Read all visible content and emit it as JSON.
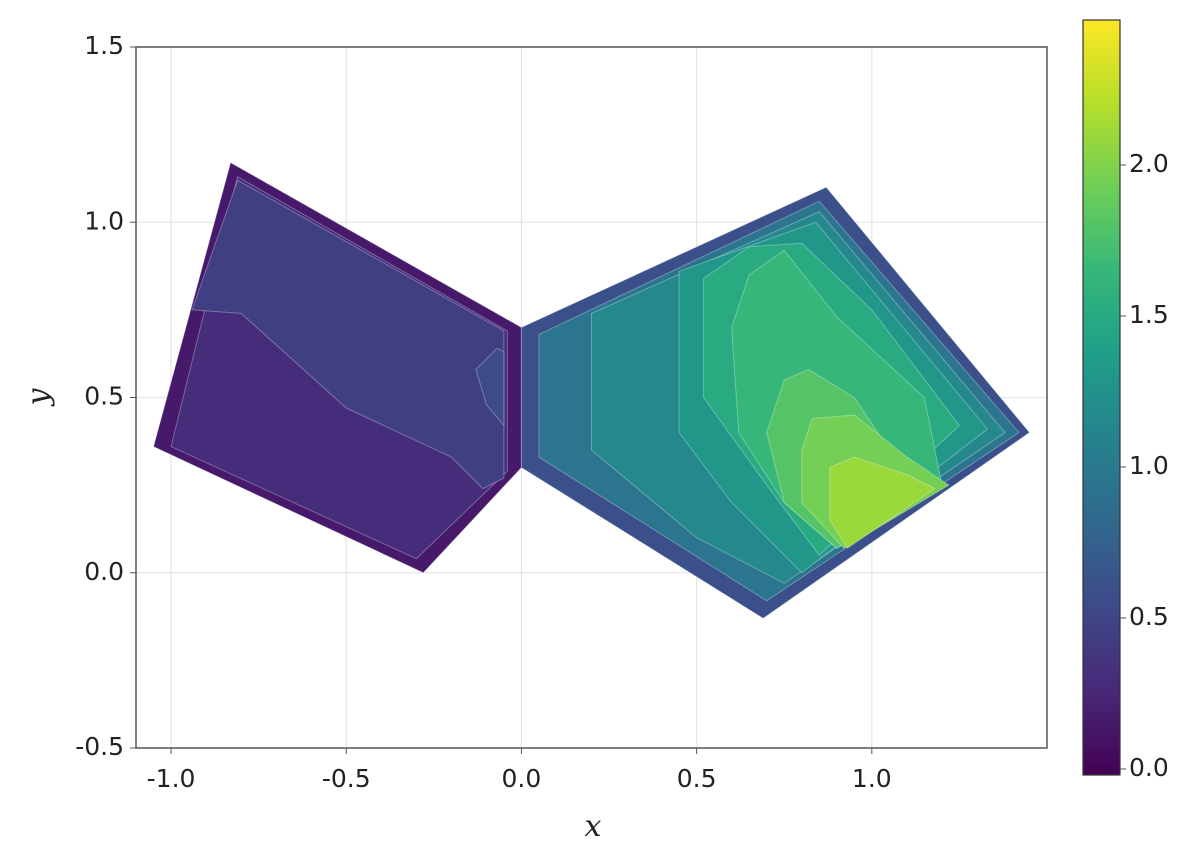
{
  "chart_data": {
    "type": "contour",
    "x_label": "x",
    "y_label": "y",
    "xlim": [
      -1.1,
      1.5
    ],
    "ylim": [
      -0.5,
      1.5
    ],
    "xticks": [
      {
        "value": -1,
        "label": "-1.0"
      },
      -0.5,
      {
        "value": 0,
        "label": "0.0"
      },
      0.5,
      {
        "value": 1,
        "label": "1.0"
      }
    ],
    "yticks": [
      -0.5,
      {
        "value": 0,
        "label": "0.0"
      },
      0.5,
      {
        "value": 1,
        "label": "1.0"
      },
      1.5
    ],
    "grid": true,
    "colormap": "viridis",
    "clim": [
      -0.02,
      2.48
    ],
    "cticks": [
      {
        "value": 0,
        "label": "0.0"
      },
      0.5,
      {
        "value": 1,
        "label": "1.0"
      },
      1.5,
      {
        "value": 2,
        "label": "2.0"
      }
    ],
    "regions": [
      {
        "level": 0.15,
        "points": [
          [
            -0.83,
            1.17
          ],
          [
            0,
            0.7
          ],
          [
            0,
            0.3
          ],
          [
            -0.28,
            0.0
          ],
          [
            -1.05,
            0.36
          ]
        ]
      },
      {
        "level": 0.3,
        "points": [
          [
            -0.81,
            1.13
          ],
          [
            -0.04,
            0.69
          ],
          [
            -0.04,
            0.29
          ],
          [
            -0.3,
            0.04
          ],
          [
            -1.0,
            0.36
          ]
        ]
      },
      {
        "level": 0.45,
        "points": [
          [
            -0.81,
            1.12
          ],
          [
            -0.05,
            0.69
          ],
          [
            -0.05,
            0.27
          ],
          [
            -0.11,
            0.24
          ],
          [
            -0.2,
            0.33
          ],
          [
            -0.5,
            0.47
          ],
          [
            -0.7,
            0.65
          ],
          [
            -0.8,
            0.74
          ],
          [
            -0.94,
            0.75
          ]
        ]
      },
      {
        "level": 0.55,
        "points": [
          [
            -0.07,
            0.64
          ],
          [
            -0.05,
            0.63
          ],
          [
            -0.05,
            0.42
          ],
          [
            -0.1,
            0.48
          ],
          [
            -0.13,
            0.58
          ]
        ]
      },
      {
        "level": 0.6,
        "points": [
          [
            0,
            0.7
          ],
          [
            0.87,
            1.1
          ],
          [
            1.45,
            0.4
          ],
          [
            0.69,
            -0.13
          ],
          [
            0,
            0.3
          ]
        ]
      },
      {
        "level": 0.95,
        "points": [
          [
            0.05,
            0.68
          ],
          [
            0.85,
            1.06
          ],
          [
            1.42,
            0.4
          ],
          [
            0.7,
            -0.08
          ],
          [
            0.05,
            0.33
          ]
        ]
      },
      {
        "level": 1.15,
        "points": [
          [
            0.2,
            0.74
          ],
          [
            0.85,
            1.03
          ],
          [
            1.38,
            0.4
          ],
          [
            0.75,
            -0.03
          ],
          [
            0.5,
            0.1
          ],
          [
            0.2,
            0.35
          ]
        ]
      },
      {
        "level": 1.3,
        "points": [
          [
            0.45,
            0.86
          ],
          [
            0.84,
            1.0
          ],
          [
            1.33,
            0.41
          ],
          [
            0.8,
            0.0
          ],
          [
            0.6,
            0.2
          ],
          [
            0.45,
            0.4
          ]
        ]
      },
      {
        "level": 1.5,
        "points": [
          [
            0.52,
            0.84
          ],
          [
            0.65,
            0.93
          ],
          [
            0.8,
            0.94
          ],
          [
            1.0,
            0.75
          ],
          [
            1.25,
            0.42
          ],
          [
            0.85,
            0.05
          ],
          [
            0.7,
            0.25
          ],
          [
            0.52,
            0.5
          ]
        ]
      },
      {
        "level": 1.65,
        "points": [
          [
            0.6,
            0.7
          ],
          [
            0.65,
            0.85
          ],
          [
            0.75,
            0.92
          ],
          [
            0.9,
            0.73
          ],
          [
            1.15,
            0.5
          ],
          [
            1.2,
            0.25
          ],
          [
            0.9,
            0.07
          ],
          [
            0.75,
            0.2
          ],
          [
            0.62,
            0.4
          ]
        ]
      },
      {
        "level": 1.8,
        "points": [
          [
            0.7,
            0.4
          ],
          [
            0.75,
            0.55
          ],
          [
            0.82,
            0.58
          ],
          [
            0.95,
            0.5
          ],
          [
            1.05,
            0.35
          ],
          [
            1.2,
            0.25
          ],
          [
            0.9,
            0.07
          ],
          [
            0.75,
            0.2
          ]
        ]
      },
      {
        "level": 1.95,
        "points": [
          [
            0.8,
            0.35
          ],
          [
            0.83,
            0.44
          ],
          [
            0.95,
            0.45
          ],
          [
            1.1,
            0.33
          ],
          [
            1.22,
            0.25
          ],
          [
            0.92,
            0.07
          ],
          [
            0.8,
            0.2
          ]
        ]
      },
      {
        "level": 2.1,
        "points": [
          [
            0.88,
            0.3
          ],
          [
            0.95,
            0.33
          ],
          [
            1.1,
            0.28
          ],
          [
            1.18,
            0.24
          ],
          [
            0.93,
            0.07
          ],
          [
            0.88,
            0.15
          ]
        ]
      }
    ]
  }
}
